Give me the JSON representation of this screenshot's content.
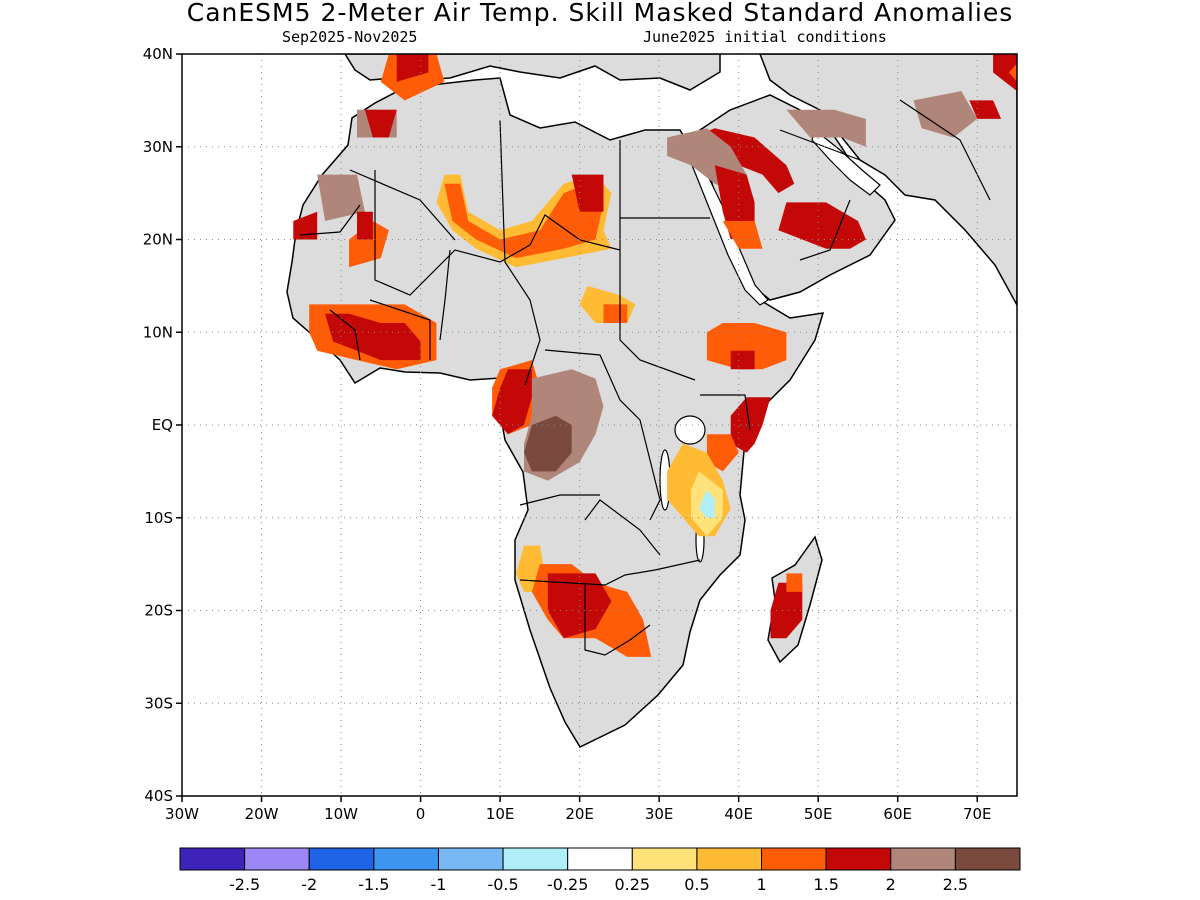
{
  "title": "CanESM5 2-Meter Air Temp. Skill Masked Standard Anomalies",
  "subtitle_left": "Sep2025-Nov2025",
  "subtitle_right": "June2025 initial conditions",
  "map": {
    "lon_range": [
      -30,
      75
    ],
    "lat_range": [
      -40,
      40
    ],
    "lat_ticks": [
      {
        "lat": 40,
        "label": "40N"
      },
      {
        "lat": 30,
        "label": "30N"
      },
      {
        "lat": 20,
        "label": "20N"
      },
      {
        "lat": 10,
        "label": "10N"
      },
      {
        "lat": 0,
        "label": "EQ"
      },
      {
        "lat": -10,
        "label": "10S"
      },
      {
        "lat": -20,
        "label": "20S"
      },
      {
        "lat": -30,
        "label": "30S"
      },
      {
        "lat": -40,
        "label": "40S"
      }
    ],
    "lon_ticks": [
      {
        "lon": -30,
        "label": "30W"
      },
      {
        "lon": -20,
        "label": "20W"
      },
      {
        "lon": -10,
        "label": "10W"
      },
      {
        "lon": 0,
        "label": "0"
      },
      {
        "lon": 10,
        "label": "10E"
      },
      {
        "lon": 20,
        "label": "20E"
      },
      {
        "lon": 30,
        "label": "30E"
      },
      {
        "lon": 40,
        "label": "40E"
      },
      {
        "lon": 50,
        "label": "50E"
      },
      {
        "lon": 60,
        "label": "60E"
      },
      {
        "lon": 70,
        "label": "70E"
      }
    ],
    "land_color": "#dcdcdc",
    "grid": true
  },
  "colorbar": {
    "colors": [
      "#3d23b8",
      "#9b87f5",
      "#1f63e6",
      "#3d95f0",
      "#77b8f5",
      "#b0eef8",
      "#ffffff",
      "#ffe27a",
      "#ffbb33",
      "#ff5c08",
      "#c40808",
      "#b0857a",
      "#7a4a3e"
    ],
    "labels": [
      "-2.5",
      "-2",
      "-1.5",
      "-1",
      "-0.5",
      "-0.25",
      "0.25",
      "0.5",
      "1",
      "1.5",
      "2",
      "2.5"
    ]
  },
  "anomaly_regions": [
    {
      "level": "1.5",
      "color": "#ff5c08",
      "pts": [
        [
          -9,
          20
        ],
        [
          -6,
          22
        ],
        [
          -4,
          21
        ],
        [
          -5,
          18
        ],
        [
          -9,
          17
        ]
      ]
    },
    {
      "level": "1.5",
      "color": "#ff5c08",
      "pts": [
        [
          -4,
          40
        ],
        [
          2,
          40
        ],
        [
          3,
          37
        ],
        [
          -2,
          35
        ],
        [
          -5,
          37
        ]
      ]
    },
    {
      "level": "2",
      "color": "#c40808",
      "pts": [
        [
          -3,
          40
        ],
        [
          1,
          40
        ],
        [
          1,
          38
        ],
        [
          -3,
          37
        ]
      ]
    },
    {
      "level": "2.5",
      "color": "#b0857a",
      "pts": [
        [
          -8,
          34
        ],
        [
          -3,
          34
        ],
        [
          -3,
          31
        ],
        [
          -8,
          31
        ]
      ]
    },
    {
      "level": "2",
      "color": "#c40808",
      "pts": [
        [
          -7,
          34
        ],
        [
          -3,
          34
        ],
        [
          -4,
          31
        ],
        [
          -6,
          31
        ]
      ]
    },
    {
      "level": "2.5",
      "color": "#b0857a",
      "pts": [
        [
          -13,
          27
        ],
        [
          -8,
          27
        ],
        [
          -7,
          23
        ],
        [
          -12,
          22
        ]
      ]
    },
    {
      "level": "2",
      "color": "#c40808",
      "pts": [
        [
          -16,
          22
        ],
        [
          -13,
          23
        ],
        [
          -13,
          20
        ],
        [
          -16,
          20
        ]
      ]
    },
    {
      "level": "2",
      "color": "#c40808",
      "pts": [
        [
          -8,
          23
        ],
        [
          -6,
          23
        ],
        [
          -6,
          20
        ],
        [
          -8,
          20
        ]
      ]
    },
    {
      "level": "1",
      "color": "#ffbb33",
      "pts": [
        [
          3,
          27
        ],
        [
          5,
          27
        ],
        [
          6,
          23
        ],
        [
          10,
          21
        ],
        [
          14,
          22
        ],
        [
          18,
          26
        ],
        [
          22,
          27
        ],
        [
          24,
          25
        ],
        [
          23,
          21
        ],
        [
          24,
          19
        ],
        [
          18,
          18
        ],
        [
          12,
          17
        ],
        [
          7,
          19
        ],
        [
          4,
          21
        ],
        [
          2,
          24
        ]
      ]
    },
    {
      "level": "1.5",
      "color": "#ff5c08",
      "pts": [
        [
          3,
          26
        ],
        [
          5,
          26
        ],
        [
          6,
          22
        ],
        [
          10,
          20
        ],
        [
          15,
          21
        ],
        [
          18,
          25
        ],
        [
          21,
          26
        ],
        [
          23,
          24
        ],
        [
          22,
          20
        ],
        [
          18,
          19
        ],
        [
          12,
          18
        ],
        [
          7,
          20
        ],
        [
          4,
          22
        ]
      ]
    },
    {
      "level": "2",
      "color": "#c40808",
      "pts": [
        [
          19,
          27
        ],
        [
          23,
          27
        ],
        [
          23,
          23
        ],
        [
          20,
          23
        ]
      ]
    },
    {
      "level": "1",
      "color": "#ffbb33",
      "pts": [
        [
          21,
          15
        ],
        [
          25,
          14
        ],
        [
          27,
          13
        ],
        [
          26,
          11
        ],
        [
          22,
          11
        ],
        [
          20,
          13
        ]
      ]
    },
    {
      "level": "1.5",
      "color": "#ff5c08",
      "pts": [
        [
          23,
          13
        ],
        [
          26,
          13
        ],
        [
          26,
          11
        ],
        [
          23,
          11
        ]
      ]
    },
    {
      "level": "1.5",
      "color": "#ff5c08",
      "pts": [
        [
          -14,
          13
        ],
        [
          -8,
          13
        ],
        [
          -2,
          13
        ],
        [
          2,
          11
        ],
        [
          2,
          7
        ],
        [
          -3,
          6
        ],
        [
          -8,
          7
        ],
        [
          -13,
          8
        ],
        [
          -14,
          10
        ]
      ]
    },
    {
      "level": "2",
      "color": "#c40808",
      "pts": [
        [
          -12,
          12
        ],
        [
          -9,
          12
        ],
        [
          -5,
          11
        ],
        [
          -2,
          11
        ],
        [
          0,
          9
        ],
        [
          0,
          7
        ],
        [
          -5,
          7
        ],
        [
          -8,
          8
        ],
        [
          -11,
          9
        ]
      ]
    },
    {
      "level": "1.5",
      "color": "#ff5c08",
      "pts": [
        [
          10,
          6
        ],
        [
          14,
          7
        ],
        [
          15,
          4
        ],
        [
          14,
          0
        ],
        [
          11,
          -1
        ],
        [
          9,
          1
        ],
        [
          9,
          4
        ]
      ]
    },
    {
      "level": "2",
      "color": "#c40808",
      "pts": [
        [
          11,
          6
        ],
        [
          14,
          6
        ],
        [
          14,
          3
        ],
        [
          13,
          0
        ],
        [
          11,
          -1
        ],
        [
          9,
          1
        ],
        [
          10,
          4
        ]
      ]
    },
    {
      "level": "2.5",
      "color": "#b0857a",
      "pts": [
        [
          14,
          5
        ],
        [
          19,
          6
        ],
        [
          22,
          5
        ],
        [
          23,
          2
        ],
        [
          22,
          -1
        ],
        [
          20,
          -4
        ],
        [
          16,
          -6
        ],
        [
          13,
          -5
        ],
        [
          13,
          -2
        ],
        [
          14,
          1
        ]
      ]
    },
    {
      "level": "2.5+",
      "color": "#7a4a3e",
      "pts": [
        [
          14,
          0
        ],
        [
          17,
          1
        ],
        [
          19,
          0
        ],
        [
          19,
          -3
        ],
        [
          17,
          -5
        ],
        [
          14,
          -5
        ],
        [
          13,
          -3
        ]
      ]
    },
    {
      "level": "1.5",
      "color": "#ff5c08",
      "pts": [
        [
          36,
          10
        ],
        [
          38,
          11
        ],
        [
          42,
          11
        ],
        [
          46,
          10
        ],
        [
          46,
          7
        ],
        [
          43,
          6
        ],
        [
          40,
          6
        ],
        [
          36,
          7
        ]
      ]
    },
    {
      "level": "2",
      "color": "#c40808",
      "pts": [
        [
          39,
          8
        ],
        [
          42,
          8
        ],
        [
          42,
          6
        ],
        [
          39,
          6
        ]
      ]
    },
    {
      "level": "2",
      "color": "#c40808",
      "pts": [
        [
          41,
          3
        ],
        [
          44,
          3
        ],
        [
          43,
          0
        ],
        [
          42,
          -2
        ],
        [
          41,
          -3
        ],
        [
          39,
          -2
        ],
        [
          39,
          1
        ]
      ]
    },
    {
      "level": "1.5",
      "color": "#ff5c08",
      "pts": [
        [
          36,
          -1
        ],
        [
          39,
          -1
        ],
        [
          40,
          -3
        ],
        [
          38,
          -5
        ],
        [
          36,
          -4
        ]
      ]
    },
    {
      "level": "1",
      "color": "#ffbb33",
      "pts": [
        [
          33,
          -2
        ],
        [
          36,
          -3
        ],
        [
          38,
          -6
        ],
        [
          39,
          -9
        ],
        [
          37,
          -12
        ],
        [
          35,
          -12
        ],
        [
          33,
          -10
        ],
        [
          31,
          -8
        ],
        [
          31,
          -5
        ]
      ]
    },
    {
      "level": "0.5",
      "color": "#ffe27a",
      "pts": [
        [
          35,
          -5
        ],
        [
          38,
          -7
        ],
        [
          38,
          -10
        ],
        [
          36,
          -12
        ],
        [
          34,
          -10
        ],
        [
          34,
          -7
        ]
      ]
    },
    {
      "level": "-0.25",
      "color": "#b0eef8",
      "pts": [
        [
          36,
          -7
        ],
        [
          37,
          -8
        ],
        [
          37,
          -10
        ],
        [
          36,
          -10
        ],
        [
          35,
          -9
        ]
      ]
    },
    {
      "level": "2",
      "color": "#c40808",
      "pts": [
        [
          34,
          31
        ],
        [
          37,
          32
        ],
        [
          42,
          31
        ],
        [
          46,
          28
        ],
        [
          47,
          26
        ],
        [
          45,
          25
        ],
        [
          43,
          27
        ],
        [
          40,
          28
        ],
        [
          37,
          29
        ],
        [
          34,
          28
        ]
      ]
    },
    {
      "level": "2.5",
      "color": "#b0857a",
      "pts": [
        [
          31,
          31
        ],
        [
          36,
          32
        ],
        [
          39,
          30
        ],
        [
          41,
          27
        ],
        [
          40,
          25
        ],
        [
          37,
          26
        ],
        [
          34,
          28
        ],
        [
          31,
          29
        ]
      ]
    },
    {
      "level": "2",
      "color": "#c40808",
      "pts": [
        [
          37,
          28
        ],
        [
          41,
          27
        ],
        [
          42,
          24
        ],
        [
          42,
          21
        ],
        [
          39,
          20
        ],
        [
          38,
          23
        ]
      ]
    },
    {
      "level": "1.5",
      "color": "#ff5c08",
      "pts": [
        [
          38,
          22
        ],
        [
          42,
          22
        ],
        [
          43,
          19
        ],
        [
          40,
          19
        ]
      ]
    },
    {
      "level": "2",
      "color": "#c40808",
      "pts": [
        [
          46,
          24
        ],
        [
          51,
          24
        ],
        [
          55,
          22
        ],
        [
          56,
          20
        ],
        [
          54,
          19
        ],
        [
          51,
          19
        ],
        [
          48,
          20
        ],
        [
          45,
          21
        ]
      ]
    },
    {
      "level": "2.5",
      "color": "#b0857a",
      "pts": [
        [
          46,
          34
        ],
        [
          52,
          34
        ],
        [
          56,
          33
        ],
        [
          56,
          30
        ],
        [
          53,
          31
        ],
        [
          49,
          31
        ]
      ]
    },
    {
      "level": "2.5",
      "color": "#b0857a",
      "pts": [
        [
          62,
          35
        ],
        [
          68,
          36
        ],
        [
          70,
          33
        ],
        [
          67,
          31
        ],
        [
          63,
          32
        ]
      ]
    },
    {
      "level": "2",
      "color": "#c40808",
      "pts": [
        [
          69,
          35
        ],
        [
          72,
          35
        ],
        [
          73,
          33
        ],
        [
          70,
          33
        ]
      ]
    },
    {
      "level": "2",
      "color": "#c40808",
      "pts": [
        [
          72,
          40
        ],
        [
          75,
          40
        ],
        [
          75,
          36
        ],
        [
          72,
          38
        ]
      ]
    },
    {
      "level": "1.5",
      "color": "#ff5c08",
      "pts": [
        [
          75,
          39
        ],
        [
          74,
          38
        ],
        [
          75,
          37
        ]
      ]
    },
    {
      "level": "1",
      "color": "#ffbb33",
      "pts": [
        [
          13,
          -13
        ],
        [
          15,
          -13
        ],
        [
          16,
          -18
        ],
        [
          13,
          -18
        ],
        [
          12,
          -16
        ]
      ]
    },
    {
      "level": "1.5",
      "color": "#ff5c08",
      "pts": [
        [
          15,
          -15
        ],
        [
          19,
          -15
        ],
        [
          22,
          -17
        ],
        [
          26,
          -18
        ],
        [
          28,
          -21
        ],
        [
          29,
          -25
        ],
        [
          26,
          -25
        ],
        [
          22,
          -23
        ],
        [
          18,
          -23
        ],
        [
          16,
          -21
        ],
        [
          14,
          -18
        ]
      ]
    },
    {
      "level": "2",
      "color": "#c40808",
      "pts": [
        [
          16,
          -16
        ],
        [
          22,
          -16
        ],
        [
          24,
          -19
        ],
        [
          22,
          -22
        ],
        [
          18,
          -23
        ],
        [
          16,
          -20
        ]
      ]
    },
    {
      "level": "2",
      "color": "#c40808",
      "pts": [
        [
          45,
          -17
        ],
        [
          48,
          -17
        ],
        [
          48,
          -21
        ],
        [
          46,
          -23
        ],
        [
          44,
          -23
        ],
        [
          44,
          -20
        ]
      ]
    },
    {
      "level": "1.5",
      "color": "#ff5c08",
      "pts": [
        [
          46,
          -16
        ],
        [
          48,
          -16
        ],
        [
          48,
          -18
        ],
        [
          46,
          -18
        ]
      ]
    }
  ]
}
